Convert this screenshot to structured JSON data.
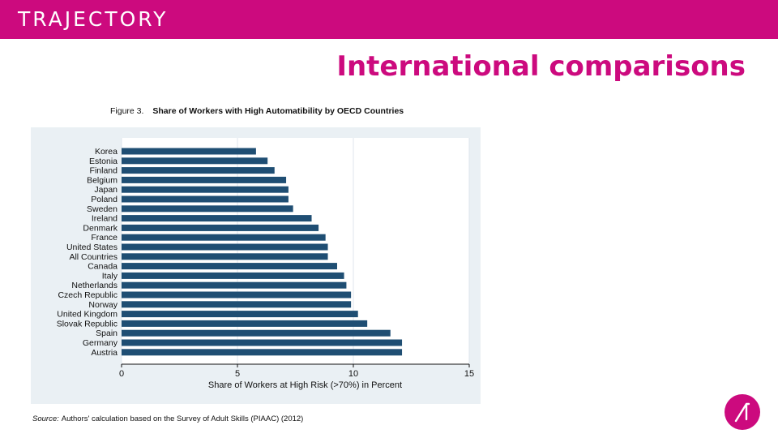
{
  "header": {
    "brand": "TRAJECTORY",
    "slide_title": "International comparisons"
  },
  "figure": {
    "label": "Figure 3.",
    "title": "Share of Workers with High Automatibility by OECD Countries",
    "source_label": "Source:",
    "source_text": "Authors' calculation based on the Survey of Adult Skills (PIAAC) (2012)"
  },
  "colors": {
    "brand": "#cc0a7e",
    "bar": "#1f4e73",
    "panel": "#eaf0f4"
  },
  "icons": {
    "logo": "trajectory-logo-icon"
  },
  "chart_data": {
    "type": "bar",
    "orientation": "horizontal",
    "categories": [
      "Korea",
      "Estonia",
      "Finland",
      "Belgium",
      "Japan",
      "Poland",
      "Sweden",
      "Ireland",
      "Denmark",
      "France",
      "United States",
      "All Countries",
      "Canada",
      "Italy",
      "Netherlands",
      "Czech Republic",
      "Norway",
      "United Kingdom",
      "Slovak Republic",
      "Spain",
      "Germany",
      "Austria"
    ],
    "values": [
      5.8,
      6.3,
      6.6,
      7.1,
      7.2,
      7.2,
      7.4,
      8.2,
      8.5,
      8.8,
      8.9,
      8.9,
      9.3,
      9.6,
      9.7,
      9.9,
      9.9,
      10.2,
      10.6,
      11.6,
      12.1,
      12.1
    ],
    "xlabel": "Share of Workers at High Risk (>70%) in Percent",
    "xlim": [
      0,
      15
    ],
    "xticks": [
      0,
      5,
      10,
      15
    ],
    "grid": true
  }
}
